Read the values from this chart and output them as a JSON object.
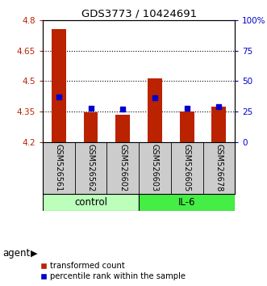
{
  "title": "GDS3773 / 10424691",
  "samples": [
    "GSM526561",
    "GSM526562",
    "GSM526602",
    "GSM526603",
    "GSM526605",
    "GSM526678"
  ],
  "groups": [
    "control",
    "control",
    "control",
    "IL-6",
    "IL-6",
    "IL-6"
  ],
  "transformed_counts": [
    4.755,
    4.345,
    4.335,
    4.515,
    4.352,
    4.375
  ],
  "percentile_ranks": [
    37,
    28,
    27,
    36,
    28,
    29
  ],
  "ylim": [
    4.2,
    4.8
  ],
  "ylim_right": [
    0,
    100
  ],
  "yticks_left": [
    4.2,
    4.35,
    4.5,
    4.65,
    4.8
  ],
  "yticks_right": [
    0,
    25,
    50,
    75,
    100
  ],
  "ytick_labels_left": [
    "4.2",
    "4.35",
    "4.5",
    "4.65",
    "4.8"
  ],
  "ytick_labels_right": [
    "0",
    "25",
    "50",
    "75",
    "100%"
  ],
  "bar_color": "#bb2200",
  "dot_color": "#0000cc",
  "base_value": 4.2,
  "group_colors": {
    "control": "#bbffbb",
    "IL-6": "#44ee44"
  },
  "grid_lines": [
    4.35,
    4.5,
    4.65
  ],
  "legend_bar_label": "transformed count",
  "legend_dot_label": "percentile rank within the sample",
  "label_bg": "#cccccc"
}
